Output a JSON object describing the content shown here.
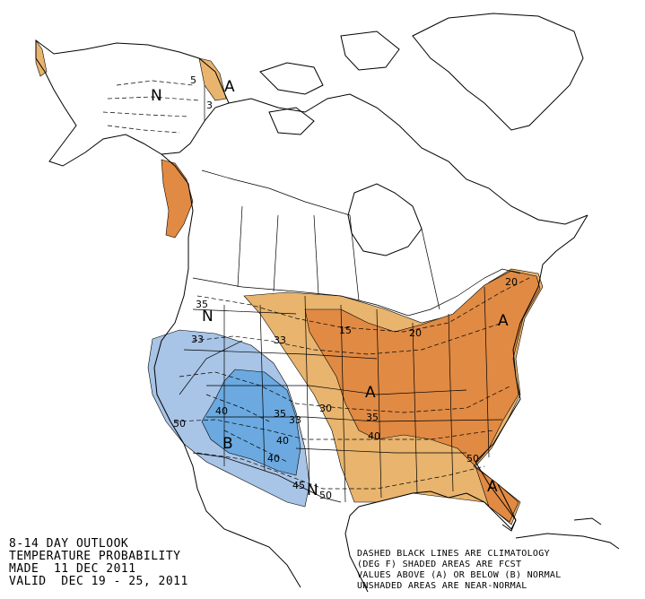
{
  "title": {
    "line1": "8-14 DAY OUTLOOK",
    "line2": "TEMPERATURE PROBABILITY",
    "line3": "MADE  11 DEC 2011",
    "line4": "VALID  DEC 19 - 25, 2011"
  },
  "legend": {
    "line1": "DASHED BLACK LINES ARE CLIMATOLOGY",
    "line2": "(DEG F) SHADED AREAS ARE FCST",
    "line3": "VALUES ABOVE (A) OR BELOW (B) NORMAL",
    "line4": "UNSHADED AREAS ARE NEAR-NORMAL"
  },
  "colors": {
    "above_light": "#E8B46E",
    "above_dark": "#E08A44",
    "below_light": "#A8C4E6",
    "below_dark": "#6BA9E0",
    "outline": "#000000"
  },
  "region_labels": {
    "alaska_normal": "N",
    "alaska_above": "A",
    "west_normal": "N",
    "southwest_below": "B",
    "south_normal": "N",
    "central_above": "A",
    "northeast_above": "A",
    "southeast_above": "A"
  },
  "contour_labels": {
    "ak_5": "5",
    "ak_3": "3",
    "west_35": "35",
    "west_33": "33",
    "plains_33": "33",
    "rockies_40": "40",
    "rockies_35": "35",
    "rockies_33": "33",
    "sw_40": "40",
    "sw_40b": "40",
    "cal_50": "50",
    "tx_45": "45",
    "tx_50": "50",
    "mid_30": "30",
    "glakes_15": "15",
    "glakes_20": "20",
    "ne_20": "20",
    "ohio_35": "35",
    "south_40": "40",
    "se_50": "50"
  }
}
